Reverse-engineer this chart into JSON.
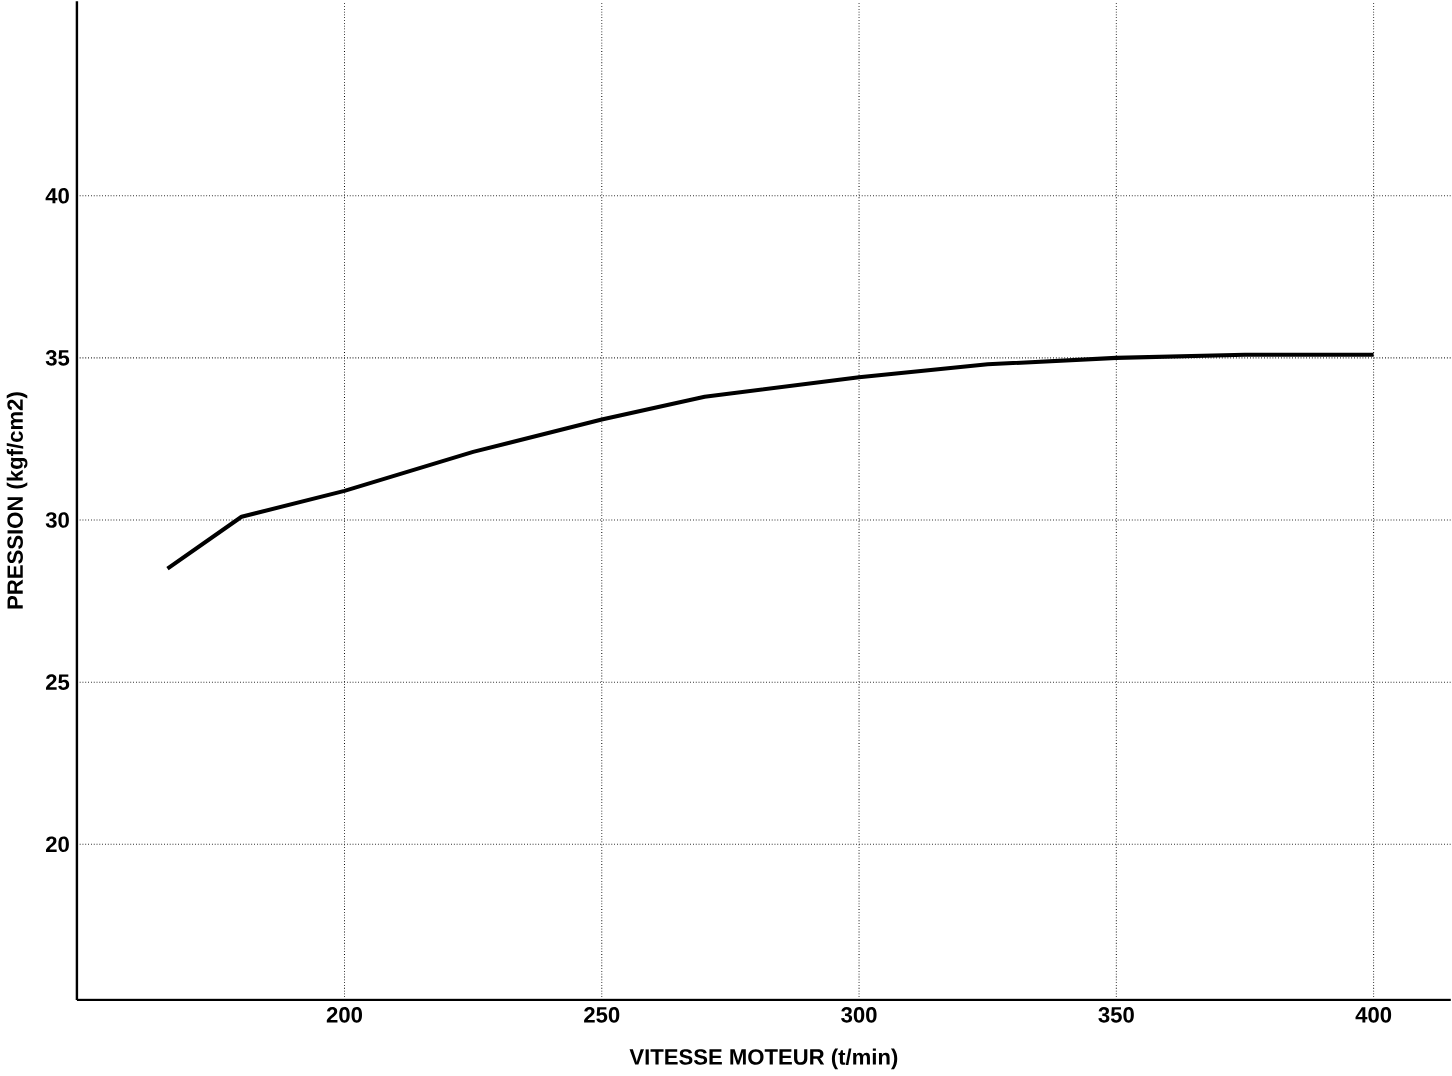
{
  "chart_data": {
    "type": "line",
    "xlabel": "VITESSE MOTEUR (t/min)",
    "ylabel": "PRESSION (kgf/cm2)",
    "xlim": [
      148,
      415
    ],
    "ylim": [
      15.2,
      46
    ],
    "xticks": [
      200,
      250,
      300,
      350,
      400
    ],
    "yticks": [
      20,
      25,
      30,
      35,
      40
    ],
    "grid": true,
    "line_style": "solid",
    "series": [
      {
        "color": "#000000",
        "x": [
          165.6,
          180,
          200,
          225,
          250,
          270,
          300,
          325,
          350,
          375,
          400
        ],
        "values": [
          28.5,
          30.1,
          30.9,
          32.1,
          33.1,
          33.8,
          34.4,
          34.8,
          35.0,
          35.1,
          35.1
        ]
      }
    ]
  }
}
